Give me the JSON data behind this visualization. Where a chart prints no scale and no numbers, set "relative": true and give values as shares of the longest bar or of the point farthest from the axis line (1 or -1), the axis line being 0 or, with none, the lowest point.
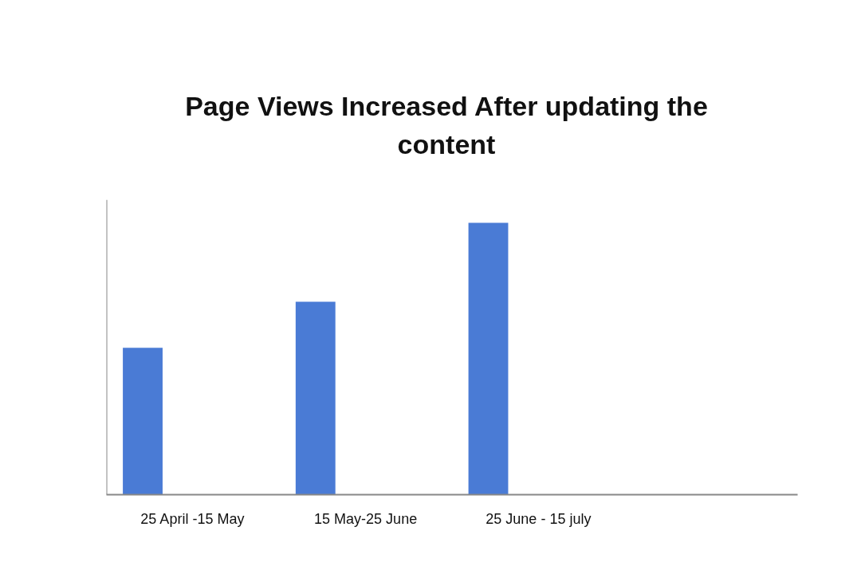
{
  "chart_data": {
    "type": "bar",
    "title": "Page Views Increased After updating the content",
    "categories": [
      "25 April -15 May",
      "15 May-25 June",
      "25 June - 15 july",
      null
    ],
    "values": [
      0.54,
      0.71,
      1,
      null
    ],
    "color": "#4a7bd5",
    "relative": true,
    "grid": false
  }
}
